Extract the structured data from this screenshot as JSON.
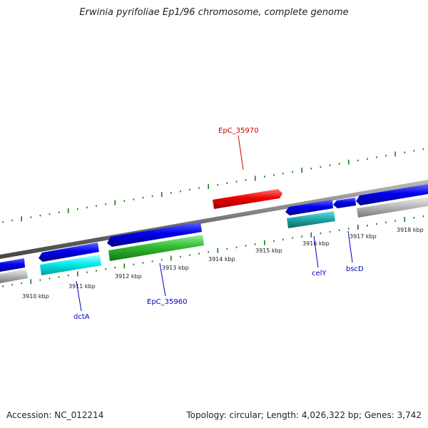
{
  "title": "Erwinia pyrifoliae Ep1/96 chromosome, complete genome",
  "footer": {
    "accession": "Accession: NC_012214",
    "summary": "Topology: circular; Length: 4,026,322 bp; Genes: 3,742"
  },
  "colors": {
    "backbone": "#808080",
    "tick": "#1a7a1a",
    "forward_label": "#cc0000",
    "reverse_label": "#0000cc",
    "cds_blue": "#0000ee",
    "cds_cyan": "#00dddd",
    "cds_teal": "#20b2aa",
    "cds_green": "#33bb33",
    "cds_red": "#ee0000",
    "cds_gray": "#bbbbbb"
  },
  "scale_labels": [
    "3910 kbp",
    "3911 kbp",
    "3912 kbp",
    "3913 kbp",
    "3914 kbp",
    "3915 kbp",
    "3916 kbp",
    "3917 kbp",
    "3918 kbp"
  ],
  "gene_labels": {
    "EpC_35970": "EpC_35970",
    "dctA": "dctA",
    "EpC_35960": "EpC_35960",
    "celY": "celY",
    "bscD": "bscD"
  }
}
